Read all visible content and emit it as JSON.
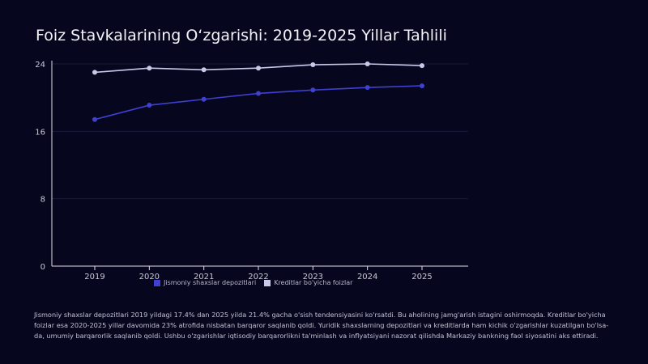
{
  "title": "Foiz Stavkalarining O‘zgarishi: 2019-2025 Yillar Tahlili",
  "description": "Jismoniy shaxslar depozitlari 2019 yildagi 17.4% dan 2025 yilda 21.4% gacha o'sish tendensiyasini ko'rsatdi. Bu aholining jamg'arish istagini oshirmoqda. Kreditlar bo'yicha foizlar esa 2020-2025 yillar davomida 23% atrofida nisbatan barqaror saqlanib qoldi. Yuridik shaxslarning depozitlari va kreditlarda ham kichik o'zgarishlar kuzatilgan bo'lsa-da, umumiy barqarorlik saqlanib qoldi. Ushbu o'zgarishlar iqtisodiy barqarorlikni ta'minlash va inflyatsiyani nazorat qilishda Markaziy bankning faol siyosatini aks ettiradi.",
  "colors": {
    "series1": "#3f3fd0",
    "series2": "#c8c8e8",
    "axis": "#e0e0ea",
    "background": "#07061f"
  },
  "chart_data": {
    "type": "line",
    "title": "Foiz Stavkalarining O‘zgarishi: 2019-2025 Yillar Tahlili",
    "x": [
      "2019",
      "2020",
      "2021",
      "2022",
      "2023",
      "2024",
      "2025"
    ],
    "ylim": [
      0,
      24
    ],
    "yticks": [
      0,
      8,
      16,
      24
    ],
    "grid": true,
    "legend_position": "bottom",
    "series": [
      {
        "name": "Jismoniy shaxslar depozitlari",
        "values": [
          17.4,
          19.1,
          19.8,
          20.5,
          20.9,
          21.2,
          21.4
        ]
      },
      {
        "name": "Kreditlar bo'yicha foizlar",
        "values": [
          23.0,
          23.5,
          23.3,
          23.5,
          23.9,
          24.0,
          23.8
        ]
      }
    ]
  }
}
